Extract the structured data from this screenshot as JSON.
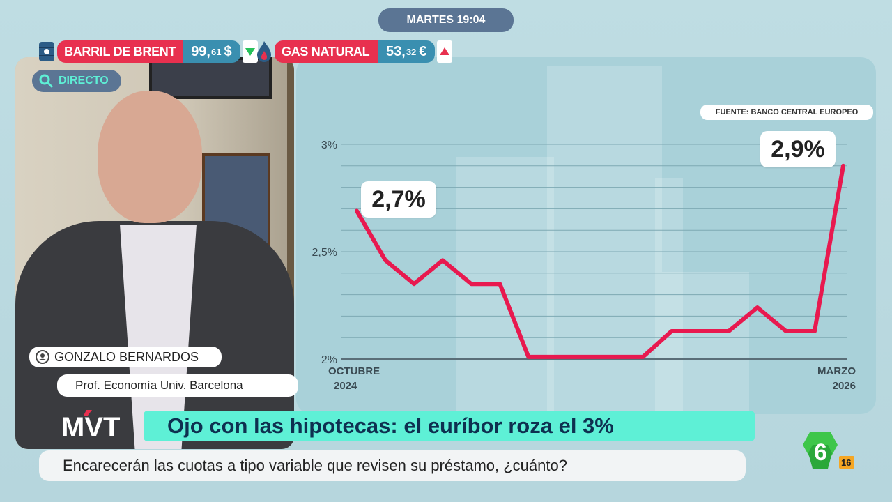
{
  "clock": {
    "text": "MARTES 19:04"
  },
  "tickers": [
    {
      "label": "BARRIL DE BRENT",
      "value_main": "99,",
      "value_dec": "61",
      "currency": "$",
      "trend": "down",
      "icon": "oil-barrel-icon"
    },
    {
      "label": "GAS NATURAL",
      "value_main": "53,",
      "value_dec": "32",
      "currency": "€",
      "trend": "up",
      "icon": "gas-flame-icon"
    }
  ],
  "live": {
    "label": "DIRECTO",
    "icon": "search-icon"
  },
  "colors": {
    "accent_line": "#e8194f",
    "headline_bg": "#5ef0d6",
    "ticker_red": "#e8304f",
    "ticker_blue": "#3a8fb0"
  },
  "source": "FUENTE: BANCO CENTRAL EUROPEO",
  "chart_data": {
    "type": "line",
    "title": "",
    "yticks": [
      "3%",
      "2,5%",
      "2%"
    ],
    "ylim": [
      2.0,
      3.0
    ],
    "x_start": {
      "month": "OCTUBRE",
      "year": "2024"
    },
    "x_end": {
      "month": "MARZO",
      "year": "2026"
    },
    "series": [
      {
        "values": [
          2.69,
          2.46,
          2.35,
          2.46,
          2.35,
          2.35,
          2.01,
          2.01,
          2.01,
          2.01,
          2.01,
          2.13,
          2.13,
          2.13,
          2.24,
          2.13,
          2.13,
          2.9
        ]
      }
    ],
    "annotations": [
      {
        "text": "2,7%",
        "index": 0
      },
      {
        "text": "2,9%",
        "index": 17
      }
    ],
    "grid": true
  },
  "guest": {
    "name": "GONZALO BERNARDOS",
    "role": "Prof. Economía Univ. Barcelona"
  },
  "program_logo": "MVT",
  "headline": "Ojo con las hipotecas: el euríbor roza el 3%",
  "subheadline": "Encarecerán las cuotas a tipo variable que revisen su préstamo, ¿cuánto?",
  "channel": {
    "number": "6",
    "rating": "16"
  }
}
